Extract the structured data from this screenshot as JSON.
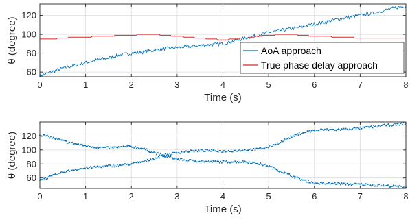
{
  "chart_data": [
    {
      "type": "line",
      "xlabel": "Time (s)",
      "ylabel": "θ (degree)",
      "xlim": [
        0,
        8
      ],
      "ylim": [
        55,
        132
      ],
      "xticks": [
        "0",
        "1",
        "2",
        "3",
        "4",
        "5",
        "6",
        "7",
        "8"
      ],
      "yticks": [
        60,
        80,
        100,
        120
      ],
      "grid": true,
      "legend": "bottom-right",
      "series": [
        {
          "name": "AoA approach",
          "color": "#0072BD",
          "x": [
            0,
            0.25,
            0.5,
            0.75,
            1,
            1.25,
            1.5,
            1.75,
            2,
            2.25,
            2.5,
            2.75,
            3,
            3.25,
            3.5,
            3.75,
            4,
            4.25,
            4.5,
            4.75,
            5,
            5.25,
            5.5,
            5.75,
            6,
            6.25,
            6.5,
            6.75,
            7,
            7.25,
            7.5,
            7.75,
            8
          ],
          "values": [
            56,
            60,
            64,
            67,
            70,
            73,
            75,
            78,
            80,
            81,
            83,
            85,
            86,
            87,
            88,
            89,
            90,
            93,
            96,
            99,
            102,
            104,
            106,
            108,
            111,
            113,
            116,
            118,
            120,
            122,
            125,
            128,
            130
          ]
        },
        {
          "name": "True phase delay approach",
          "color": "#D62728",
          "x": [
            0,
            0.25,
            0.5,
            0.75,
            1,
            1.25,
            1.5,
            1.75,
            2,
            2.25,
            2.5,
            2.75,
            3,
            3.25,
            3.5,
            3.75,
            4,
            4.25,
            4.5,
            4.75,
            5,
            5.25,
            5.5,
            5.75,
            6,
            6.25,
            6.5,
            6.75,
            7,
            7.25,
            7.5,
            7.75,
            8
          ],
          "values": [
            95,
            95,
            96,
            97,
            97,
            98,
            98,
            99,
            99,
            100,
            100,
            99,
            98,
            97,
            96,
            95,
            94,
            95,
            96,
            98,
            99,
            100,
            100,
            99,
            98,
            98,
            97,
            97,
            96,
            96,
            96,
            96,
            96
          ]
        }
      ]
    },
    {
      "type": "scatter",
      "xlabel": "Time (s)",
      "ylabel": "θ (degree)",
      "xlim": [
        0,
        8
      ],
      "ylim": [
        45,
        140
      ],
      "xticks": [
        "0",
        "1",
        "2",
        "3",
        "4",
        "5",
        "6",
        "7",
        "8"
      ],
      "yticks": [
        60,
        80,
        100,
        120
      ],
      "grid": true,
      "series": [
        {
          "color": "#0072BD",
          "x": [
            0,
            0.25,
            0.5,
            0.75,
            1,
            1.25,
            1.5,
            1.75,
            2,
            2.25,
            2.5,
            2.75,
            3,
            3.25,
            3.5,
            3.75,
            4,
            4.25,
            4.5,
            4.75,
            5,
            5.25,
            5.5,
            5.75,
            6,
            6.25,
            6.5,
            6.75,
            7,
            7.25,
            7.5,
            7.75,
            8
          ],
          "values": [
            122,
            118,
            113,
            109,
            106,
            104,
            103,
            104,
            105,
            102,
            96,
            91,
            87,
            85,
            84,
            83,
            83,
            83,
            83,
            81,
            77,
            70,
            63,
            57,
            53,
            52,
            52,
            51,
            51,
            50,
            49,
            48,
            47
          ]
        },
        {
          "color": "#0072BD",
          "x": [
            0,
            0.25,
            0.5,
            0.75,
            1,
            1.25,
            1.5,
            1.75,
            2,
            2.25,
            2.5,
            2.75,
            3,
            3.25,
            3.5,
            3.75,
            4,
            4.25,
            4.5,
            4.75,
            5,
            5.25,
            5.5,
            5.75,
            6,
            6.25,
            6.5,
            6.75,
            7,
            7.25,
            7.5,
            7.75,
            8
          ],
          "values": [
            57,
            62,
            68,
            72,
            74,
            76,
            77,
            78,
            80,
            83,
            88,
            93,
            96,
            98,
            99,
            99,
            98,
            99,
            100,
            101,
            104,
            111,
            119,
            125,
            128,
            129,
            129,
            130,
            131,
            133,
            135,
            136,
            138
          ]
        }
      ]
    }
  ]
}
